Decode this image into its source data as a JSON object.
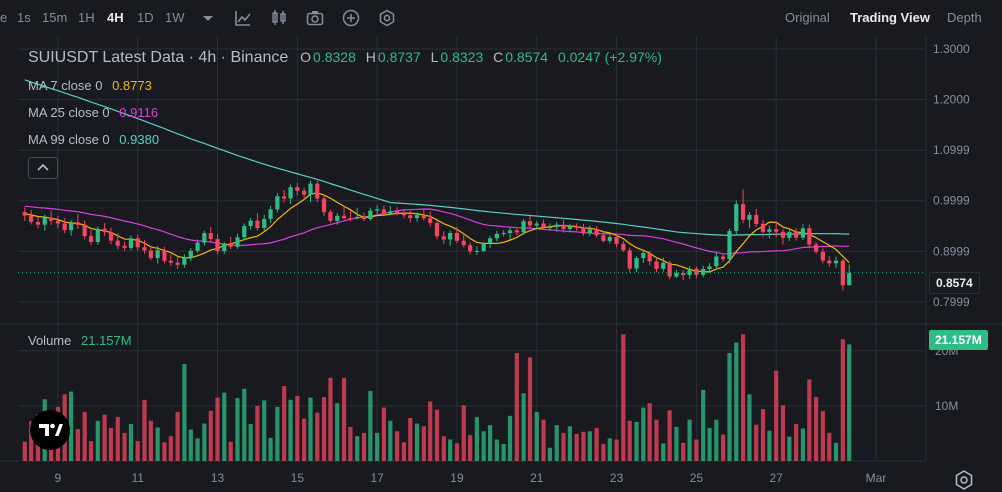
{
  "toolbar": {
    "timeframes": [
      "e",
      "1s",
      "15m",
      "1H",
      "4H",
      "1D",
      "1W"
    ],
    "active_timeframe": "4H",
    "icons": [
      "chevron-down-icon",
      "indicator-icon",
      "candle-type-icon",
      "screenshot-icon",
      "add-icon",
      "settings-icon"
    ],
    "views": [
      "Original",
      "Trading View",
      "Depth"
    ],
    "active_view": "Trading View"
  },
  "legend": {
    "title": "SUIUSDT Latest Data · 4h · Binance",
    "o_label": "O",
    "o_value": "0.8328",
    "h_label": "H",
    "h_value": "0.8737",
    "l_label": "L",
    "l_value": "0.8323",
    "c_label": "C",
    "c_value": "0.8574",
    "change": "0.0247 (+2.97%)",
    "ma7_label": "MA 7 close 0",
    "ma7_value": "0.8773",
    "ma25_label": "MA 25 close 0",
    "ma25_value": "0.9116",
    "ma99_label": "MA 99 close 0",
    "ma99_value": "0.9380",
    "volume_label": "Volume",
    "volume_value": "21.157M"
  },
  "axis": {
    "price_ticks": [
      "1.3000",
      "1.2000",
      "1.0999",
      "0.9999",
      "0.8999",
      "0.7999"
    ],
    "current_price": "0.8574",
    "volume_ticks": [
      "20M",
      "10M"
    ],
    "current_volume": "21.157M",
    "date_ticks": [
      "9",
      "11",
      "13",
      "15",
      "17",
      "19",
      "21",
      "23",
      "25",
      "27",
      "Mar"
    ]
  },
  "colors": {
    "up": "#2ebd85",
    "down": "#f6465d",
    "ma7": "#f0b90b",
    "ma25": "#d93fdc",
    "ma99": "#5ad1c3",
    "background": "#181a20",
    "grid": "#2b2f36"
  },
  "chart_data": {
    "type": "candlestick",
    "symbol": "SUIUSDT",
    "interval": "4h",
    "ylim": [
      0.76,
      1.31
    ],
    "x_range_days": [
      8.0,
      29.0
    ],
    "candles": [
      {
        "t": "8.17",
        "o": 0.9778,
        "h": 0.9868,
        "l": 0.9599,
        "c": 0.9704,
        "v": 3.5
      },
      {
        "t": "8.33",
        "o": 0.9704,
        "h": 0.9819,
        "l": 0.953,
        "c": 0.958,
        "v": 7.2
      },
      {
        "t": "8.50",
        "o": 0.958,
        "h": 0.9682,
        "l": 0.9449,
        "c": 0.9526,
        "v": 8.5
      },
      {
        "t": "8.67",
        "o": 0.9526,
        "h": 0.9727,
        "l": 0.9407,
        "c": 0.9665,
        "v": 11.2
      },
      {
        "t": "8.83",
        "o": 0.9665,
        "h": 0.9803,
        "l": 0.9524,
        "c": 0.9604,
        "v": 5.0
      },
      {
        "t": "9.00",
        "o": 0.9604,
        "h": 0.9698,
        "l": 0.946,
        "c": 0.9548,
        "v": 9.8
      },
      {
        "t": "9.17",
        "o": 0.9548,
        "h": 0.9655,
        "l": 0.9356,
        "c": 0.9417,
        "v": 12.1
      },
      {
        "t": "9.33",
        "o": 0.9417,
        "h": 0.9619,
        "l": 0.9305,
        "c": 0.9573,
        "v": 12.6
      },
      {
        "t": "9.50",
        "o": 0.9573,
        "h": 0.9736,
        "l": 0.944,
        "c": 0.9521,
        "v": 5.8
      },
      {
        "t": "9.67",
        "o": 0.9521,
        "h": 0.9612,
        "l": 0.924,
        "c": 0.93,
        "v": 8.9
      },
      {
        "t": "9.83",
        "o": 0.93,
        "h": 0.9418,
        "l": 0.9119,
        "c": 0.9183,
        "v": 3.6
      },
      {
        "t": "10.00",
        "o": 0.9183,
        "h": 0.9492,
        "l": 0.9126,
        "c": 0.9444,
        "v": 7.3
      },
      {
        "t": "10.17",
        "o": 0.9444,
        "h": 0.9556,
        "l": 0.9305,
        "c": 0.9377,
        "v": 8.4
      },
      {
        "t": "10.33",
        "o": 0.9377,
        "h": 0.9466,
        "l": 0.9138,
        "c": 0.921,
        "v": 6.0
      },
      {
        "t": "10.50",
        "o": 0.921,
        "h": 0.9359,
        "l": 0.9036,
        "c": 0.9108,
        "v": 8.0
      },
      {
        "t": "10.67",
        "o": 0.9108,
        "h": 0.9195,
        "l": 0.9007,
        "c": 0.9065,
        "v": 5.1
      },
      {
        "t": "10.83",
        "o": 0.9065,
        "h": 0.931,
        "l": 0.9021,
        "c": 0.9257,
        "v": 6.7
      },
      {
        "t": "11.00",
        "o": 0.9257,
        "h": 0.933,
        "l": 0.9011,
        "c": 0.9078,
        "v": 3.6
      },
      {
        "t": "11.17",
        "o": 0.9078,
        "h": 0.9223,
        "l": 0.8953,
        "c": 0.9014,
        "v": 11.1
      },
      {
        "t": "11.33",
        "o": 0.9014,
        "h": 0.9066,
        "l": 0.8819,
        "c": 0.8864,
        "v": 7.3
      },
      {
        "t": "11.50",
        "o": 0.8864,
        "h": 0.9104,
        "l": 0.8756,
        "c": 0.902,
        "v": 6.1
      },
      {
        "t": "11.67",
        "o": 0.902,
        "h": 0.9083,
        "l": 0.8762,
        "c": 0.8812,
        "v": 3.4
      },
      {
        "t": "11.83",
        "o": 0.8812,
        "h": 0.8936,
        "l": 0.8715,
        "c": 0.8774,
        "v": 4.5
      },
      {
        "t": "12.00",
        "o": 0.8774,
        "h": 0.8909,
        "l": 0.8646,
        "c": 0.8733,
        "v": 8.9
      },
      {
        "t": "12.17",
        "o": 0.8733,
        "h": 0.894,
        "l": 0.8672,
        "c": 0.8873,
        "v": 17.6
      },
      {
        "t": "12.33",
        "o": 0.8873,
        "h": 0.9061,
        "l": 0.8801,
        "c": 0.9008,
        "v": 5.7
      },
      {
        "t": "12.50",
        "o": 0.9008,
        "h": 0.923,
        "l": 0.8973,
        "c": 0.9171,
        "v": 4.1
      },
      {
        "t": "12.67",
        "o": 0.9171,
        "h": 0.9403,
        "l": 0.9109,
        "c": 0.9359,
        "v": 6.8
      },
      {
        "t": "12.83",
        "o": 0.9359,
        "h": 0.9476,
        "l": 0.9181,
        "c": 0.9244,
        "v": 9.1
      },
      {
        "t": "13.00",
        "o": 0.9244,
        "h": 0.9342,
        "l": 0.894,
        "c": 0.9003,
        "v": 11.5
      },
      {
        "t": "13.17",
        "o": 0.9003,
        "h": 0.9178,
        "l": 0.8947,
        "c": 0.9153,
        "v": 12.4
      },
      {
        "t": "13.33",
        "o": 0.9153,
        "h": 0.9284,
        "l": 0.9042,
        "c": 0.9087,
        "v": 3.5
      },
      {
        "t": "13.50",
        "o": 0.9087,
        "h": 0.935,
        "l": 0.9049,
        "c": 0.9276,
        "v": 11.4
      },
      {
        "t": "13.67",
        "o": 0.9276,
        "h": 0.9551,
        "l": 0.9216,
        "c": 0.9499,
        "v": 13.1
      },
      {
        "t": "13.83",
        "o": 0.9499,
        "h": 0.9659,
        "l": 0.9426,
        "c": 0.9606,
        "v": 6.7
      },
      {
        "t": "14.00",
        "o": 0.9606,
        "h": 0.975,
        "l": 0.9406,
        "c": 0.9459,
        "v": 10.0
      },
      {
        "t": "14.17",
        "o": 0.9459,
        "h": 0.9723,
        "l": 0.9411,
        "c": 0.9639,
        "v": 11.0
      },
      {
        "t": "14.33",
        "o": 0.9639,
        "h": 0.9897,
        "l": 0.9557,
        "c": 0.9828,
        "v": 4.2
      },
      {
        "t": "14.50",
        "o": 0.9828,
        "h": 1.0151,
        "l": 0.9764,
        "c": 1.0087,
        "v": 9.8
      },
      {
        "t": "14.67",
        "o": 1.0087,
        "h": 1.0214,
        "l": 0.9966,
        "c": 1.0043,
        "v": 13.6
      },
      {
        "t": "14.83",
        "o": 1.0043,
        "h": 1.0322,
        "l": 0.9934,
        "c": 1.0268,
        "v": 11.1
      },
      {
        "t": "15.00",
        "o": 1.0268,
        "h": 1.0351,
        "l": 1.0108,
        "c": 1.0196,
        "v": 11.8
      },
      {
        "t": "15.17",
        "o": 1.0196,
        "h": 1.0261,
        "l": 1.0057,
        "c": 1.0119,
        "v": 7.7
      },
      {
        "t": "15.33",
        "o": 1.0119,
        "h": 1.0397,
        "l": 0.9978,
        "c": 1.0338,
        "v": 11.5
      },
      {
        "t": "15.50",
        "o": 1.0338,
        "h": 1.0392,
        "l": 0.9974,
        "c": 1.0042,
        "v": 8.8
      },
      {
        "t": "15.67",
        "o": 1.0042,
        "h": 1.0113,
        "l": 0.9696,
        "c": 0.9773,
        "v": 11.6
      },
      {
        "t": "15.83",
        "o": 0.9773,
        "h": 0.9822,
        "l": 0.9562,
        "c": 0.96,
        "v": 15.1
      },
      {
        "t": "16.00",
        "o": 0.96,
        "h": 0.9754,
        "l": 0.9522,
        "c": 0.9701,
        "v": 10.5
      },
      {
        "t": "16.17",
        "o": 0.9701,
        "h": 0.9893,
        "l": 0.9629,
        "c": 0.9654,
        "v": 15.1
      },
      {
        "t": "16.33",
        "o": 0.9654,
        "h": 0.9802,
        "l": 0.9597,
        "c": 0.9649,
        "v": 6.2
      },
      {
        "t": "16.50",
        "o": 0.9649,
        "h": 0.9855,
        "l": 0.9625,
        "c": 0.9679,
        "v": 4.5
      },
      {
        "t": "16.67",
        "o": 0.9679,
        "h": 0.9765,
        "l": 0.9594,
        "c": 0.9637,
        "v": 5.1
      },
      {
        "t": "16.83",
        "o": 0.9637,
        "h": 0.9863,
        "l": 0.9604,
        "c": 0.9803,
        "v": 12.7
      },
      {
        "t": "17.00",
        "o": 0.9803,
        "h": 0.9908,
        "l": 0.9743,
        "c": 0.9828,
        "v": 5.1
      },
      {
        "t": "17.17",
        "o": 0.9828,
        "h": 0.991,
        "l": 0.9724,
        "c": 0.9748,
        "v": 9.7
      },
      {
        "t": "17.33",
        "o": 0.9748,
        "h": 0.9902,
        "l": 0.9711,
        "c": 0.9789,
        "v": 7.3
      },
      {
        "t": "17.50",
        "o": 0.9789,
        "h": 0.9867,
        "l": 0.9709,
        "c": 0.9746,
        "v": 5.4
      },
      {
        "t": "17.67",
        "o": 0.9746,
        "h": 0.9836,
        "l": 0.9647,
        "c": 0.9711,
        "v": 3.4
      },
      {
        "t": "17.83",
        "o": 0.9711,
        "h": 0.9798,
        "l": 0.957,
        "c": 0.9655,
        "v": 7.8
      },
      {
        "t": "18.00",
        "o": 0.9655,
        "h": 0.9769,
        "l": 0.9588,
        "c": 0.9715,
        "v": 6.8
      },
      {
        "t": "18.17",
        "o": 0.9715,
        "h": 0.9817,
        "l": 0.9612,
        "c": 0.9652,
        "v": 6.3
      },
      {
        "t": "18.33",
        "o": 0.9652,
        "h": 0.9788,
        "l": 0.949,
        "c": 0.9558,
        "v": 10.8
      },
      {
        "t": "18.50",
        "o": 0.9558,
        "h": 0.9645,
        "l": 0.9236,
        "c": 0.9294,
        "v": 9.3
      },
      {
        "t": "18.67",
        "o": 0.9294,
        "h": 0.9396,
        "l": 0.9145,
        "c": 0.9233,
        "v": 4.5
      },
      {
        "t": "18.83",
        "o": 0.9233,
        "h": 0.9412,
        "l": 0.9108,
        "c": 0.9361,
        "v": 3.9
      },
      {
        "t": "19.00",
        "o": 0.9361,
        "h": 0.9478,
        "l": 0.9159,
        "c": 0.9208,
        "v": 3.2
      },
      {
        "t": "19.17",
        "o": 0.9208,
        "h": 0.9347,
        "l": 0.9077,
        "c": 0.9119,
        "v": 10.1
      },
      {
        "t": "19.33",
        "o": 0.9119,
        "h": 0.9174,
        "l": 0.8941,
        "c": 0.8997,
        "v": 4.7
      },
      {
        "t": "19.50",
        "o": 0.8997,
        "h": 0.9098,
        "l": 0.8929,
        "c": 0.9005,
        "v": 8.0
      },
      {
        "t": "19.67",
        "o": 0.9005,
        "h": 0.9187,
        "l": 0.8984,
        "c": 0.9155,
        "v": 5.4
      },
      {
        "t": "19.83",
        "o": 0.9155,
        "h": 0.9303,
        "l": 0.9066,
        "c": 0.9255,
        "v": 6.5
      },
      {
        "t": "20.00",
        "o": 0.9255,
        "h": 0.9399,
        "l": 0.9192,
        "c": 0.9342,
        "v": 3.9
      },
      {
        "t": "20.17",
        "o": 0.9342,
        "h": 0.9413,
        "l": 0.9292,
        "c": 0.936,
        "v": 3.1
      },
      {
        "t": "20.33",
        "o": 0.936,
        "h": 0.9467,
        "l": 0.9229,
        "c": 0.9412,
        "v": 8.2
      },
      {
        "t": "20.50",
        "o": 0.9412,
        "h": 0.9475,
        "l": 0.932,
        "c": 0.9374,
        "v": 19.6
      },
      {
        "t": "20.67",
        "o": 0.9374,
        "h": 0.9637,
        "l": 0.9324,
        "c": 0.9595,
        "v": 12.3
      },
      {
        "t": "20.83",
        "o": 0.9595,
        "h": 0.9703,
        "l": 0.9463,
        "c": 0.9508,
        "v": 18.8
      },
      {
        "t": "21.00",
        "o": 0.9508,
        "h": 0.9595,
        "l": 0.9444,
        "c": 0.9548,
        "v": 8.9
      },
      {
        "t": "21.17",
        "o": 0.9548,
        "h": 0.9624,
        "l": 0.9451,
        "c": 0.9476,
        "v": 7.5
      },
      {
        "t": "21.33",
        "o": 0.9476,
        "h": 0.955,
        "l": 0.9409,
        "c": 0.948,
        "v": 2.4
      },
      {
        "t": "21.50",
        "o": 0.948,
        "h": 0.9581,
        "l": 0.9384,
        "c": 0.9527,
        "v": 6.5
      },
      {
        "t": "21.67",
        "o": 0.9527,
        "h": 0.9617,
        "l": 0.9367,
        "c": 0.944,
        "v": 5.1
      },
      {
        "t": "21.83",
        "o": 0.944,
        "h": 0.9541,
        "l": 0.9372,
        "c": 0.9494,
        "v": 6.3
      },
      {
        "t": "22.00",
        "o": 0.9494,
        "h": 0.9552,
        "l": 0.9403,
        "c": 0.9462,
        "v": 4.9
      },
      {
        "t": "22.17",
        "o": 0.9462,
        "h": 0.954,
        "l": 0.9305,
        "c": 0.935,
        "v": 5.3
      },
      {
        "t": "22.33",
        "o": 0.935,
        "h": 0.9505,
        "l": 0.9298,
        "c": 0.9435,
        "v": 5.4
      },
      {
        "t": "22.50",
        "o": 0.9435,
        "h": 0.9498,
        "l": 0.9271,
        "c": 0.9316,
        "v": 6.0
      },
      {
        "t": "22.67",
        "o": 0.9316,
        "h": 0.9396,
        "l": 0.9178,
        "c": 0.9204,
        "v": 3.1
      },
      {
        "t": "22.83",
        "o": 0.9204,
        "h": 0.9351,
        "l": 0.915,
        "c": 0.9282,
        "v": 4.1
      },
      {
        "t": "23.00",
        "o": 0.9282,
        "h": 0.9319,
        "l": 0.9075,
        "c": 0.9145,
        "v": 3.9
      },
      {
        "t": "23.17",
        "o": 0.9145,
        "h": 0.9203,
        "l": 0.8986,
        "c": 0.9019,
        "v": 23.0
      },
      {
        "t": "23.33",
        "o": 0.9019,
        "h": 0.9071,
        "l": 0.8579,
        "c": 0.8657,
        "v": 7.3
      },
      {
        "t": "23.50",
        "o": 0.8657,
        "h": 0.8899,
        "l": 0.8591,
        "c": 0.8864,
        "v": 7.1
      },
      {
        "t": "23.67",
        "o": 0.8864,
        "h": 0.9024,
        "l": 0.8767,
        "c": 0.8965,
        "v": 9.7
      },
      {
        "t": "23.83",
        "o": 0.8965,
        "h": 0.9006,
        "l": 0.8723,
        "c": 0.8799,
        "v": 10.5
      },
      {
        "t": "24.00",
        "o": 0.8799,
        "h": 0.8852,
        "l": 0.8583,
        "c": 0.8652,
        "v": 7.5
      },
      {
        "t": "24.17",
        "o": 0.8652,
        "h": 0.8876,
        "l": 0.8597,
        "c": 0.8774,
        "v": 3.2
      },
      {
        "t": "24.33",
        "o": 0.8774,
        "h": 0.8814,
        "l": 0.8445,
        "c": 0.8498,
        "v": 9.2
      },
      {
        "t": "24.50",
        "o": 0.8498,
        "h": 0.8636,
        "l": 0.8471,
        "c": 0.8567,
        "v": 6.2
      },
      {
        "t": "24.67",
        "o": 0.8567,
        "h": 0.8628,
        "l": 0.8427,
        "c": 0.8528,
        "v": 3.3
      },
      {
        "t": "24.83",
        "o": 0.8528,
        "h": 0.8705,
        "l": 0.845,
        "c": 0.8654,
        "v": 7.5
      },
      {
        "t": "25.00",
        "o": 0.8654,
        "h": 0.8696,
        "l": 0.8467,
        "c": 0.8533,
        "v": 3.9
      },
      {
        "t": "25.17",
        "o": 0.8533,
        "h": 0.8715,
        "l": 0.8484,
        "c": 0.8648,
        "v": 12.9
      },
      {
        "t": "25.33",
        "o": 0.8648,
        "h": 0.8764,
        "l": 0.8595,
        "c": 0.8701,
        "v": 6.0
      },
      {
        "t": "25.50",
        "o": 0.8701,
        "h": 0.8974,
        "l": 0.8669,
        "c": 0.8897,
        "v": 7.5
      },
      {
        "t": "25.67",
        "o": 0.8897,
        "h": 0.8956,
        "l": 0.8794,
        "c": 0.8843,
        "v": 4.8
      },
      {
        "t": "25.83",
        "o": 0.8843,
        "h": 0.945,
        "l": 0.876,
        "c": 0.9401,
        "v": 19.6
      },
      {
        "t": "26.00",
        "o": 0.9401,
        "h": 1.0002,
        "l": 0.9314,
        "c": 0.9932,
        "v": 21.5
      },
      {
        "t": "26.17",
        "o": 0.9932,
        "h": 1.0219,
        "l": 0.9552,
        "c": 0.9623,
        "v": 23.0
      },
      {
        "t": "26.33",
        "o": 0.9623,
        "h": 0.9776,
        "l": 0.9455,
        "c": 0.9719,
        "v": 12.1
      },
      {
        "t": "26.50",
        "o": 0.9719,
        "h": 0.9838,
        "l": 0.9486,
        "c": 0.9541,
        "v": 6.6
      },
      {
        "t": "26.67",
        "o": 0.9541,
        "h": 0.9615,
        "l": 0.9275,
        "c": 0.9383,
        "v": 9.4
      },
      {
        "t": "26.83",
        "o": 0.9383,
        "h": 0.9506,
        "l": 0.9254,
        "c": 0.9435,
        "v": 5.5
      },
      {
        "t": "27.00",
        "o": 0.9435,
        "h": 0.9585,
        "l": 0.9281,
        "c": 0.9385,
        "v": 16.4
      },
      {
        "t": "27.17",
        "o": 0.9385,
        "h": 0.9444,
        "l": 0.9133,
        "c": 0.9265,
        "v": 10.1
      },
      {
        "t": "27.33",
        "o": 0.9265,
        "h": 0.9445,
        "l": 0.9204,
        "c": 0.9382,
        "v": 4.4
      },
      {
        "t": "27.50",
        "o": 0.9382,
        "h": 0.9462,
        "l": 0.9213,
        "c": 0.927,
        "v": 6.7
      },
      {
        "t": "27.67",
        "o": 0.927,
        "h": 0.9534,
        "l": 0.9223,
        "c": 0.9454,
        "v": 5.9
      },
      {
        "t": "27.83",
        "o": 0.9454,
        "h": 0.9527,
        "l": 0.9061,
        "c": 0.9134,
        "v": 14.8
      },
      {
        "t": "28.00",
        "o": 0.9134,
        "h": 0.9183,
        "l": 0.8951,
        "c": 0.8991,
        "v": 11.6
      },
      {
        "t": "28.17",
        "o": 0.8991,
        "h": 0.9057,
        "l": 0.8761,
        "c": 0.8815,
        "v": 9.1
      },
      {
        "t": "28.33",
        "o": 0.8815,
        "h": 0.8904,
        "l": 0.8687,
        "c": 0.8761,
        "v": 5.1
      },
      {
        "t": "28.50",
        "o": 0.8761,
        "h": 0.889,
        "l": 0.8667,
        "c": 0.8813,
        "v": 3.3
      },
      {
        "t": "28.67",
        "o": 0.8813,
        "h": 0.8846,
        "l": 0.8223,
        "c": 0.8327,
        "v": 22.1
      },
      {
        "t": "28.83",
        "o": 0.8328,
        "h": 0.8737,
        "l": 0.8323,
        "c": 0.8574,
        "v": 21.157
      }
    ]
  }
}
